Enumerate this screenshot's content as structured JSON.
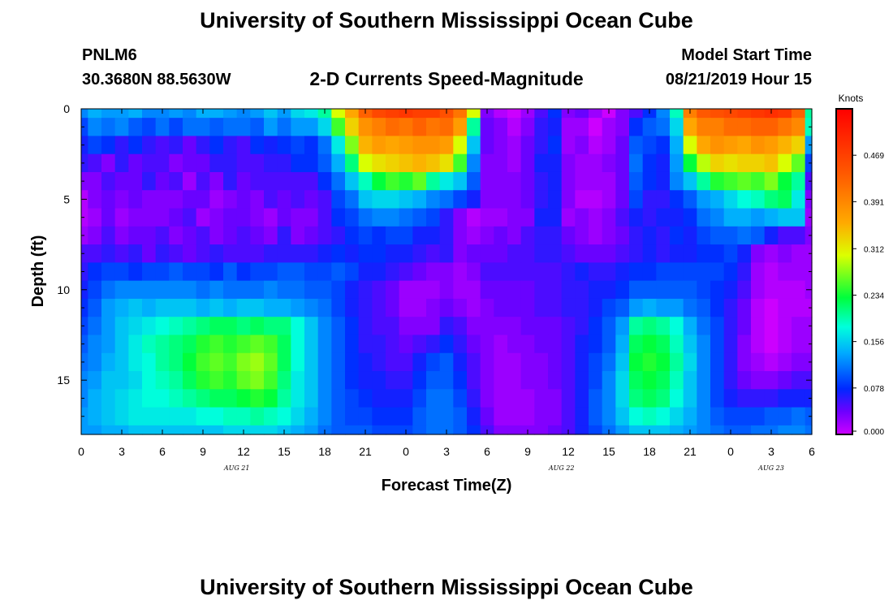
{
  "header": {
    "title": "University of Southern Mississippi Ocean Cube",
    "station": "PNLM6",
    "coords": "30.3680N 88.5630W",
    "subtitle": "2-D Currents Speed-Magnitude",
    "start_label": "Model Start Time",
    "start_value": "08/21/2019 Hour 15"
  },
  "footer": {
    "title": "University of Southern Mississippi Ocean Cube"
  },
  "chart_data": {
    "type": "heatmap",
    "title": "2-D Currents Speed-Magnitude",
    "xlabel": "Forecast Time(Z)",
    "ylabel": "Depth (ft)",
    "x_range_hours": [
      0,
      54
    ],
    "y_range_ft": [
      0,
      18
    ],
    "x_tick_labels": [
      "0",
      "3",
      "6",
      "9",
      "12",
      "15",
      "18",
      "21",
      "0",
      "3",
      "6",
      "9",
      "12",
      "15",
      "18",
      "21",
      "0",
      "3",
      "6"
    ],
    "date_labels": [
      {
        "text": "AUG  21",
        "hour": 11.5
      },
      {
        "text": "AUG  22",
        "hour": 35.5
      },
      {
        "text": "AUG  23",
        "hour": 51
      }
    ],
    "y_ticks": [
      0,
      5,
      10,
      15
    ],
    "colorbar": {
      "unit": "Knots",
      "min": 0.0,
      "max": 0.547,
      "tick_labels": [
        "0.000",
        "0.078",
        "0.156",
        "0.234",
        "0.312",
        "0.391",
        "0.469"
      ],
      "tick_values": [
        0.0,
        0.078,
        0.156,
        0.234,
        0.312,
        0.391,
        0.469
      ]
    },
    "speed_grid_knots": {
      "x_hours": [
        0,
        1,
        2,
        3,
        4,
        5,
        6,
        7,
        8,
        9,
        10,
        11,
        12,
        13,
        14,
        15,
        16,
        17,
        18,
        19,
        20,
        21,
        22,
        23,
        24,
        25,
        26,
        27,
        28,
        29,
        30,
        31,
        32,
        33,
        34,
        35,
        36,
        37,
        38,
        39,
        40,
        41,
        42,
        43,
        44,
        45,
        46,
        47,
        48,
        49,
        50,
        51,
        52,
        53,
        54
      ],
      "depth_ft": [
        0,
        1,
        2,
        3,
        4,
        5,
        6,
        7,
        8,
        9,
        10,
        11,
        12,
        13,
        14,
        15,
        16,
        17,
        18
      ],
      "rows": [
        [
          0.12,
          0.14,
          0.13,
          0.13,
          0.14,
          0.12,
          0.12,
          0.13,
          0.12,
          0.14,
          0.14,
          0.13,
          0.12,
          0.13,
          0.15,
          0.13,
          0.16,
          0.17,
          0.2,
          0.3,
          0.36,
          0.43,
          0.46,
          0.47,
          0.48,
          0.47,
          0.47,
          0.45,
          0.41,
          0.3,
          0.03,
          0.01,
          0.0,
          0.02,
          0.05,
          0.08,
          0.03,
          0.04,
          0.02,
          0.0,
          0.03,
          0.05,
          0.08,
          0.12,
          0.19,
          0.4,
          0.44,
          0.45,
          0.46,
          0.47,
          0.48,
          0.49,
          0.48,
          0.43,
          0.2
        ],
        [
          0.09,
          0.12,
          0.11,
          0.12,
          0.1,
          0.09,
          0.11,
          0.09,
          0.11,
          0.11,
          0.1,
          0.11,
          0.11,
          0.1,
          0.13,
          0.11,
          0.13,
          0.13,
          0.16,
          0.25,
          0.33,
          0.38,
          0.4,
          0.42,
          0.41,
          0.43,
          0.41,
          0.42,
          0.37,
          0.2,
          0.04,
          0.03,
          0.01,
          0.03,
          0.06,
          0.07,
          0.02,
          0.02,
          0.0,
          0.02,
          0.03,
          0.08,
          0.1,
          0.11,
          0.16,
          0.36,
          0.4,
          0.4,
          0.42,
          0.42,
          0.43,
          0.43,
          0.41,
          0.39,
          0.19
        ],
        [
          0.07,
          0.09,
          0.08,
          0.06,
          0.08,
          0.06,
          0.05,
          0.06,
          0.04,
          0.06,
          0.08,
          0.06,
          0.05,
          0.08,
          0.07,
          0.08,
          0.09,
          0.08,
          0.11,
          0.17,
          0.27,
          0.35,
          0.37,
          0.36,
          0.37,
          0.38,
          0.38,
          0.37,
          0.3,
          0.15,
          0.04,
          0.03,
          0.02,
          0.04,
          0.06,
          0.08,
          0.02,
          0.03,
          0.01,
          0.02,
          0.04,
          0.1,
          0.09,
          0.08,
          0.14,
          0.3,
          0.36,
          0.38,
          0.37,
          0.36,
          0.38,
          0.37,
          0.35,
          0.33,
          0.13
        ],
        [
          0.06,
          0.05,
          0.03,
          0.06,
          0.04,
          0.05,
          0.05,
          0.03,
          0.04,
          0.04,
          0.06,
          0.06,
          0.05,
          0.05,
          0.06,
          0.06,
          0.08,
          0.08,
          0.1,
          0.14,
          0.21,
          0.3,
          0.32,
          0.33,
          0.34,
          0.35,
          0.34,
          0.32,
          0.25,
          0.12,
          0.03,
          0.03,
          0.02,
          0.04,
          0.07,
          0.07,
          0.03,
          0.02,
          0.02,
          0.03,
          0.04,
          0.11,
          0.08,
          0.07,
          0.13,
          0.23,
          0.29,
          0.33,
          0.32,
          0.33,
          0.33,
          0.34,
          0.3,
          0.26,
          0.09
        ],
        [
          0.03,
          0.03,
          0.05,
          0.04,
          0.04,
          0.06,
          0.04,
          0.05,
          0.02,
          0.05,
          0.03,
          0.06,
          0.04,
          0.05,
          0.05,
          0.05,
          0.05,
          0.05,
          0.08,
          0.11,
          0.15,
          0.19,
          0.23,
          0.25,
          0.24,
          0.26,
          0.2,
          0.17,
          0.15,
          0.1,
          0.03,
          0.03,
          0.03,
          0.04,
          0.06,
          0.07,
          0.03,
          0.02,
          0.02,
          0.02,
          0.04,
          0.1,
          0.08,
          0.07,
          0.12,
          0.15,
          0.2,
          0.24,
          0.25,
          0.26,
          0.25,
          0.27,
          0.23,
          0.2,
          0.05
        ],
        [
          0.01,
          0.03,
          0.04,
          0.03,
          0.04,
          0.03,
          0.03,
          0.03,
          0.04,
          0.04,
          0.02,
          0.03,
          0.04,
          0.03,
          0.05,
          0.04,
          0.05,
          0.04,
          0.05,
          0.09,
          0.11,
          0.15,
          0.16,
          0.16,
          0.15,
          0.14,
          0.12,
          0.11,
          0.09,
          0.07,
          0.03,
          0.03,
          0.03,
          0.04,
          0.06,
          0.07,
          0.03,
          0.01,
          0.01,
          0.02,
          0.04,
          0.09,
          0.06,
          0.06,
          0.08,
          0.1,
          0.13,
          0.14,
          0.16,
          0.18,
          0.19,
          0.21,
          0.22,
          0.17,
          0.03
        ],
        [
          0.01,
          0.02,
          0.04,
          0.02,
          0.03,
          0.03,
          0.03,
          0.04,
          0.05,
          0.02,
          0.03,
          0.04,
          0.04,
          0.03,
          0.02,
          0.04,
          0.03,
          0.03,
          0.05,
          0.08,
          0.09,
          0.11,
          0.12,
          0.12,
          0.11,
          0.1,
          0.09,
          0.06,
          0.03,
          0.01,
          0.02,
          0.02,
          0.03,
          0.03,
          0.07,
          0.07,
          0.02,
          0.03,
          0.02,
          0.03,
          0.05,
          0.07,
          0.06,
          0.07,
          0.07,
          0.08,
          0.11,
          0.12,
          0.14,
          0.14,
          0.13,
          0.14,
          0.15,
          0.15,
          0.02
        ],
        [
          0.02,
          0.03,
          0.05,
          0.03,
          0.04,
          0.04,
          0.05,
          0.03,
          0.04,
          0.05,
          0.03,
          0.04,
          0.05,
          0.04,
          0.03,
          0.06,
          0.03,
          0.04,
          0.05,
          0.06,
          0.08,
          0.09,
          0.08,
          0.09,
          0.09,
          0.07,
          0.07,
          0.06,
          0.03,
          0.02,
          0.03,
          0.04,
          0.03,
          0.05,
          0.06,
          0.06,
          0.04,
          0.03,
          0.02,
          0.03,
          0.04,
          0.06,
          0.07,
          0.06,
          0.08,
          0.07,
          0.09,
          0.1,
          0.1,
          0.11,
          0.1,
          0.07,
          0.05,
          0.05,
          0.03
        ],
        [
          0.05,
          0.05,
          0.06,
          0.05,
          0.06,
          0.04,
          0.06,
          0.05,
          0.04,
          0.05,
          0.06,
          0.05,
          0.05,
          0.05,
          0.06,
          0.06,
          0.06,
          0.06,
          0.07,
          0.08,
          0.07,
          0.08,
          0.08,
          0.07,
          0.07,
          0.06,
          0.05,
          0.06,
          0.03,
          0.04,
          0.04,
          0.04,
          0.05,
          0.05,
          0.06,
          0.06,
          0.05,
          0.04,
          0.04,
          0.04,
          0.05,
          0.06,
          0.07,
          0.06,
          0.07,
          0.07,
          0.08,
          0.08,
          0.09,
          0.07,
          0.03,
          0.02,
          0.03,
          0.02,
          0.02
        ],
        [
          0.06,
          0.08,
          0.09,
          0.09,
          0.08,
          0.09,
          0.09,
          0.1,
          0.09,
          0.09,
          0.08,
          0.1,
          0.08,
          0.09,
          0.09,
          0.1,
          0.1,
          0.09,
          0.09,
          0.1,
          0.09,
          0.07,
          0.07,
          0.06,
          0.05,
          0.04,
          0.03,
          0.03,
          0.02,
          0.03,
          0.05,
          0.05,
          0.05,
          0.05,
          0.05,
          0.05,
          0.06,
          0.07,
          0.06,
          0.06,
          0.07,
          0.08,
          0.08,
          0.09,
          0.09,
          0.09,
          0.09,
          0.09,
          0.08,
          0.06,
          0.02,
          0.01,
          0.02,
          0.02,
          0.02
        ],
        [
          0.07,
          0.09,
          0.11,
          0.12,
          0.12,
          0.12,
          0.12,
          0.12,
          0.12,
          0.11,
          0.12,
          0.11,
          0.11,
          0.11,
          0.12,
          0.11,
          0.11,
          0.1,
          0.1,
          0.09,
          0.07,
          0.06,
          0.05,
          0.04,
          0.02,
          0.02,
          0.02,
          0.03,
          0.02,
          0.02,
          0.04,
          0.04,
          0.04,
          0.04,
          0.05,
          0.05,
          0.06,
          0.06,
          0.07,
          0.07,
          0.08,
          0.1,
          0.1,
          0.1,
          0.1,
          0.1,
          0.09,
          0.08,
          0.07,
          0.05,
          0.02,
          0.01,
          0.01,
          0.01,
          0.02
        ],
        [
          0.08,
          0.1,
          0.13,
          0.14,
          0.15,
          0.14,
          0.15,
          0.15,
          0.15,
          0.14,
          0.15,
          0.14,
          0.15,
          0.15,
          0.14,
          0.14,
          0.13,
          0.12,
          0.11,
          0.09,
          0.07,
          0.06,
          0.05,
          0.04,
          0.02,
          0.02,
          0.03,
          0.04,
          0.03,
          0.02,
          0.03,
          0.04,
          0.04,
          0.04,
          0.05,
          0.05,
          0.06,
          0.06,
          0.07,
          0.09,
          0.1,
          0.13,
          0.14,
          0.13,
          0.13,
          0.11,
          0.1,
          0.08,
          0.06,
          0.04,
          0.01,
          0.0,
          0.01,
          0.01,
          0.01
        ],
        [
          0.09,
          0.11,
          0.13,
          0.15,
          0.16,
          0.17,
          0.18,
          0.19,
          0.2,
          0.21,
          0.22,
          0.22,
          0.21,
          0.22,
          0.21,
          0.21,
          0.18,
          0.15,
          0.12,
          0.1,
          0.08,
          0.06,
          0.05,
          0.05,
          0.03,
          0.03,
          0.03,
          0.06,
          0.05,
          0.03,
          0.03,
          0.03,
          0.03,
          0.04,
          0.04,
          0.04,
          0.05,
          0.06,
          0.08,
          0.1,
          0.13,
          0.2,
          0.21,
          0.2,
          0.18,
          0.14,
          0.11,
          0.09,
          0.06,
          0.04,
          0.01,
          0.0,
          0.01,
          0.02,
          0.02
        ],
        [
          0.1,
          0.12,
          0.13,
          0.15,
          0.17,
          0.19,
          0.2,
          0.21,
          0.22,
          0.24,
          0.25,
          0.24,
          0.25,
          0.26,
          0.25,
          0.22,
          0.18,
          0.15,
          0.12,
          0.1,
          0.08,
          0.06,
          0.06,
          0.05,
          0.04,
          0.05,
          0.06,
          0.08,
          0.06,
          0.04,
          0.03,
          0.02,
          0.03,
          0.03,
          0.04,
          0.04,
          0.05,
          0.07,
          0.08,
          0.1,
          0.14,
          0.22,
          0.23,
          0.22,
          0.19,
          0.15,
          0.12,
          0.09,
          0.06,
          0.03,
          0.01,
          0.0,
          0.01,
          0.02,
          0.02
        ],
        [
          0.11,
          0.12,
          0.14,
          0.15,
          0.17,
          0.18,
          0.2,
          0.21,
          0.23,
          0.25,
          0.26,
          0.25,
          0.27,
          0.28,
          0.26,
          0.22,
          0.18,
          0.15,
          0.12,
          0.1,
          0.08,
          0.07,
          0.06,
          0.05,
          0.05,
          0.07,
          0.09,
          0.1,
          0.07,
          0.05,
          0.03,
          0.02,
          0.02,
          0.03,
          0.03,
          0.04,
          0.05,
          0.07,
          0.09,
          0.11,
          0.15,
          0.23,
          0.24,
          0.23,
          0.2,
          0.16,
          0.12,
          0.09,
          0.06,
          0.03,
          0.02,
          0.01,
          0.02,
          0.03,
          0.03
        ],
        [
          0.12,
          0.13,
          0.15,
          0.15,
          0.16,
          0.18,
          0.19,
          0.2,
          0.22,
          0.24,
          0.25,
          0.24,
          0.26,
          0.27,
          0.25,
          0.21,
          0.17,
          0.15,
          0.12,
          0.1,
          0.08,
          0.07,
          0.07,
          0.06,
          0.06,
          0.08,
          0.1,
          0.1,
          0.08,
          0.05,
          0.03,
          0.02,
          0.02,
          0.03,
          0.03,
          0.04,
          0.05,
          0.07,
          0.09,
          0.12,
          0.16,
          0.22,
          0.23,
          0.22,
          0.19,
          0.15,
          0.12,
          0.09,
          0.06,
          0.04,
          0.03,
          0.03,
          0.04,
          0.05,
          0.05
        ],
        [
          0.12,
          0.14,
          0.15,
          0.16,
          0.17,
          0.18,
          0.18,
          0.19,
          0.2,
          0.21,
          0.22,
          0.22,
          0.23,
          0.24,
          0.23,
          0.2,
          0.17,
          0.15,
          0.12,
          0.1,
          0.09,
          0.08,
          0.07,
          0.07,
          0.07,
          0.09,
          0.11,
          0.11,
          0.09,
          0.06,
          0.03,
          0.02,
          0.02,
          0.02,
          0.03,
          0.03,
          0.05,
          0.07,
          0.1,
          0.12,
          0.16,
          0.21,
          0.22,
          0.21,
          0.18,
          0.15,
          0.12,
          0.09,
          0.07,
          0.06,
          0.06,
          0.06,
          0.07,
          0.07,
          0.07
        ],
        [
          0.13,
          0.14,
          0.15,
          0.16,
          0.17,
          0.17,
          0.17,
          0.17,
          0.17,
          0.18,
          0.18,
          0.19,
          0.19,
          0.2,
          0.19,
          0.18,
          0.16,
          0.14,
          0.12,
          0.1,
          0.09,
          0.09,
          0.08,
          0.08,
          0.08,
          0.1,
          0.11,
          0.11,
          0.1,
          0.07,
          0.04,
          0.02,
          0.02,
          0.02,
          0.03,
          0.03,
          0.05,
          0.07,
          0.1,
          0.12,
          0.15,
          0.18,
          0.19,
          0.18,
          0.16,
          0.14,
          0.12,
          0.1,
          0.09,
          0.09,
          0.09,
          0.1,
          0.1,
          0.11,
          0.1
        ],
        [
          0.13,
          0.13,
          0.14,
          0.14,
          0.15,
          0.15,
          0.15,
          0.15,
          0.15,
          0.15,
          0.15,
          0.16,
          0.16,
          0.16,
          0.16,
          0.15,
          0.14,
          0.13,
          0.11,
          0.1,
          0.1,
          0.1,
          0.09,
          0.09,
          0.09,
          0.1,
          0.11,
          0.11,
          0.1,
          0.08,
          0.05,
          0.03,
          0.03,
          0.03,
          0.03,
          0.04,
          0.05,
          0.07,
          0.09,
          0.11,
          0.13,
          0.15,
          0.15,
          0.15,
          0.14,
          0.13,
          0.12,
          0.11,
          0.1,
          0.1,
          0.11,
          0.11,
          0.12,
          0.12,
          0.11
        ]
      ]
    }
  }
}
